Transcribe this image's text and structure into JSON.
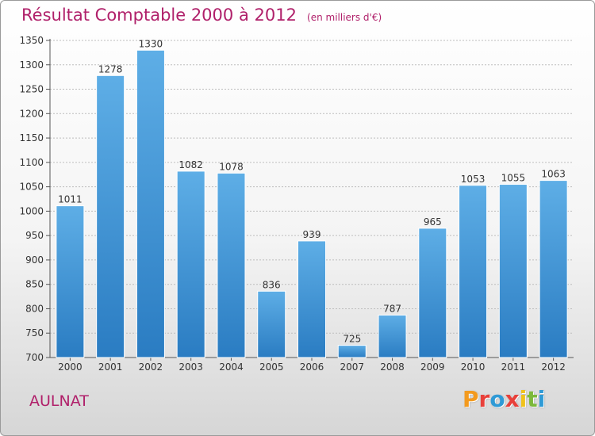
{
  "header": {
    "title": "Résultat Comptable 2000 à 2012",
    "subtitle": "(en milliers d'€)"
  },
  "footer": {
    "city": "AULNAT",
    "logo": "Proxiti"
  },
  "colors": {
    "accent": "#b0206a",
    "bar_top": "#5aaae4",
    "bar_bottom": "#2a7fc4"
  },
  "chart_data": {
    "type": "bar",
    "title": "Résultat Comptable 2000 à 2012",
    "subtitle": "(en milliers d'€)",
    "categories": [
      "2000",
      "2001",
      "2002",
      "2003",
      "2004",
      "2005",
      "2006",
      "2007",
      "2008",
      "2009",
      "2010",
      "2011",
      "2012"
    ],
    "values": [
      1011,
      1278,
      1330,
      1082,
      1078,
      836,
      939,
      725,
      787,
      965,
      1053,
      1055,
      1063
    ],
    "ylim": [
      700,
      1350
    ],
    "yticks": [
      700,
      750,
      800,
      850,
      900,
      950,
      1000,
      1050,
      1100,
      1150,
      1200,
      1250,
      1300,
      1350
    ],
    "grid": true,
    "legend": "none"
  }
}
